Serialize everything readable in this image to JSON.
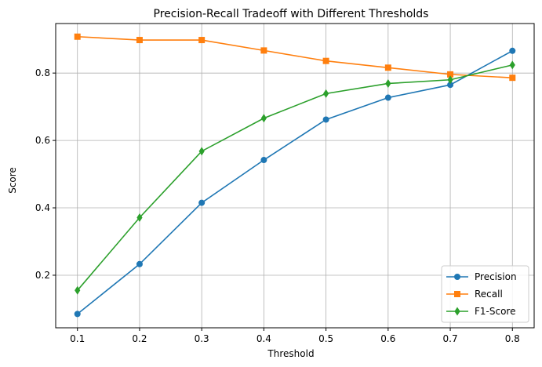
{
  "chart_data": {
    "type": "line",
    "title": "Precision-Recall Tradeoff with Different Thresholds",
    "xlabel": "Threshold",
    "ylabel": "Score",
    "x": [
      0.1,
      0.2,
      0.3,
      0.4,
      0.5,
      0.6,
      0.7,
      0.8
    ],
    "xticks": [
      "0.1",
      "0.2",
      "0.3",
      "0.4",
      "0.5",
      "0.6",
      "0.7",
      "0.8"
    ],
    "yticks": [
      "0.2",
      "0.4",
      "0.6",
      "0.8"
    ],
    "xlim": [
      0.065,
      0.835
    ],
    "ylim": [
      0.044,
      0.947
    ],
    "grid": true,
    "legend_position": "lower-right",
    "series": [
      {
        "name": "Precision",
        "color": "#1f77b4",
        "marker": "circle",
        "values": [
          0.085,
          0.233,
          0.415,
          0.542,
          0.662,
          0.727,
          0.765,
          0.866
        ]
      },
      {
        "name": "Recall",
        "color": "#ff7f0e",
        "marker": "square",
        "values": [
          0.908,
          0.898,
          0.898,
          0.867,
          0.836,
          0.816,
          0.796,
          0.786
        ]
      },
      {
        "name": "F1-Score",
        "color": "#2ca02c",
        "marker": "thin-diamond",
        "values": [
          0.155,
          0.371,
          0.568,
          0.666,
          0.739,
          0.769,
          0.78,
          0.824
        ]
      }
    ]
  }
}
